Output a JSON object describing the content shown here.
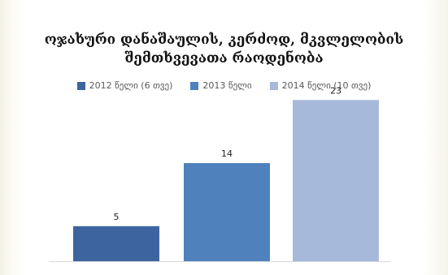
{
  "chart_data": {
    "type": "bar",
    "title": [
      "ოჯახური დანაშაულის, კერძოდ, მკვლელობის",
      "შემთხვევათა რაოდენობა"
    ],
    "categories": [
      "2012 წელი (6 თვე)",
      "2013 წელი",
      "2014 წელი (10 თვე)"
    ],
    "values": [
      5,
      14,
      23
    ],
    "colors": [
      "#3e64a0",
      "#4f81bd",
      "#a7b9db"
    ],
    "legend_position": "top",
    "ylim": [
      0,
      25
    ],
    "grid": false
  }
}
